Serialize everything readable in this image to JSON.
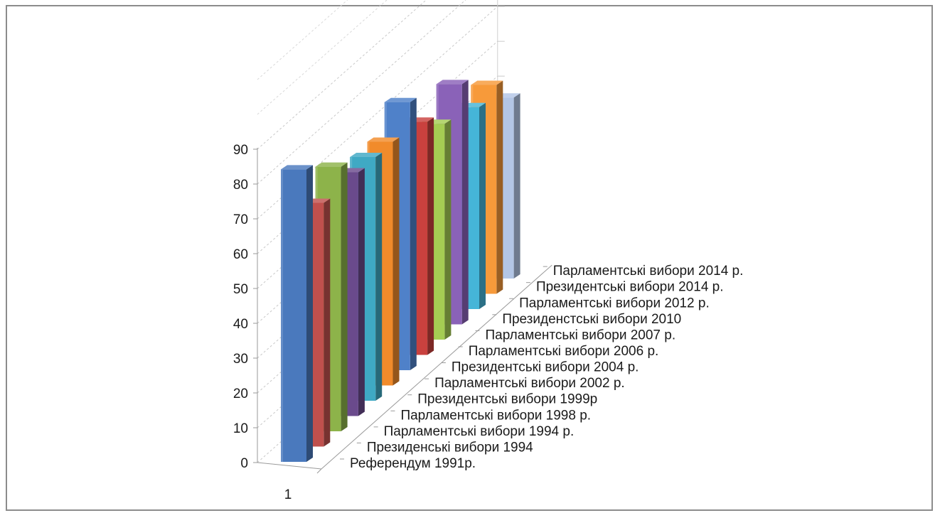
{
  "chart_data": {
    "type": "bar",
    "categories": [
      "1"
    ],
    "series": [
      {
        "name": "Референдум 1991р.",
        "values": [
          84
        ],
        "color": "#4a79bd"
      },
      {
        "name": "Президенські вибори 1994",
        "values": [
          70
        ],
        "color": "#c0504d"
      },
      {
        "name": "Парламентські вибори 1994 р.",
        "values": [
          76
        ],
        "color": "#8db34a"
      },
      {
        "name": "Парламентські вибори 1998 р.",
        "values": [
          70
        ],
        "color": "#6a4a8c"
      },
      {
        "name": "Президентські вибори 1999р",
        "values": [
          70
        ],
        "color": "#3fa9c4"
      },
      {
        "name": "Парламентські вибори 2002 р.",
        "values": [
          70
        ],
        "color": "#f18b2b"
      },
      {
        "name": "Президентські вибори 2004 р.",
        "values": [
          77
        ],
        "color": "#4f81c9"
      },
      {
        "name": "Парламентські вибори 2006 р.",
        "values": [
          67
        ],
        "color": "#c9413e"
      },
      {
        "name": "Парламентські вибори 2007 р.",
        "values": [
          62
        ],
        "color": "#a5cd53"
      },
      {
        "name": "Президенстські вибори 2010",
        "values": [
          69
        ],
        "color": "#8a62b8"
      },
      {
        "name": "Парламентські вибори 2012 р.",
        "values": [
          58
        ],
        "color": "#45b5d8"
      },
      {
        "name": "Президентські вибори 2014 р.",
        "values": [
          60
        ],
        "color": "#f79a3a"
      },
      {
        "name": "Парламентські вибори 2014 р.",
        "values": [
          52
        ],
        "color": "#b3c6e6"
      }
    ],
    "y_ticks": [
      "0",
      "10",
      "20",
      "30",
      "40",
      "50",
      "60",
      "70",
      "80",
      "90"
    ],
    "ylim": [
      0,
      90
    ],
    "title": "",
    "xlabel": "",
    "ylabel": "",
    "grid": true,
    "legend": "none",
    "view": "3d-columns"
  }
}
